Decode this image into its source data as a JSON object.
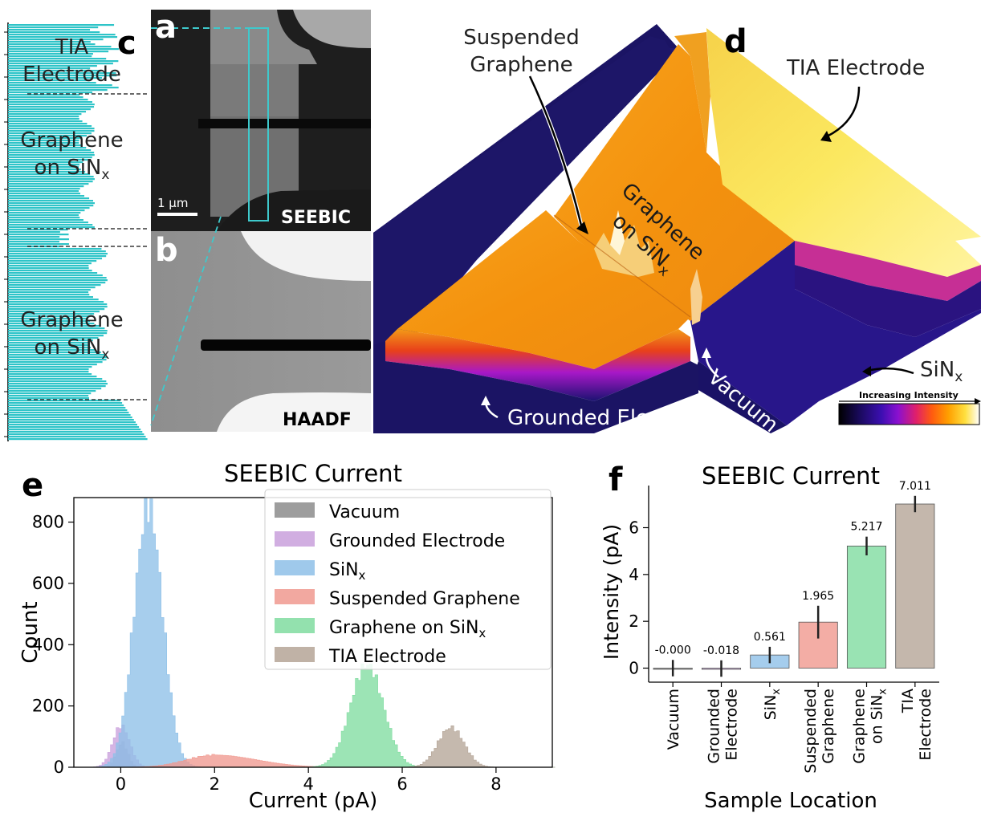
{
  "panels": {
    "a": "a",
    "b": "b",
    "c": "c",
    "d": "d",
    "e": "e",
    "f": "f"
  },
  "panel_a": {
    "mode": "SEEBIC",
    "scale_bar": "1 µm"
  },
  "panel_b": {
    "mode": "HAADF"
  },
  "panel_c": {
    "labels": [
      {
        "line1": "TIA",
        "line2": "Electrode"
      },
      {
        "line1": "Graphene",
        "line2": "on SiN",
        "sub": "x"
      },
      {
        "line1": "Graphene",
        "line2": "on SiN",
        "sub": "x"
      }
    ]
  },
  "panel_d": {
    "annotations": {
      "suspended_1": "Suspended",
      "suspended_2": "Graphene",
      "tia": "TIA Electrode",
      "graphene_1": "Graphene",
      "graphene_2": "on SiN",
      "graphene_sub": "x",
      "sinx": "SiN",
      "sinx_sub": "x",
      "vacuum": "Vacuum",
      "grounded": "Grounded Electrode"
    },
    "colorbar_label": "Increasing Intensity",
    "colormap": [
      "#000000",
      "#1a0a5e",
      "#3b0fb0",
      "#8a10d0",
      "#e0206a",
      "#ff5a10",
      "#ffa000",
      "#ffe040",
      "#ffffff"
    ]
  },
  "chart_data": [
    {
      "type": "histogram",
      "title": "SEEBIC Current",
      "xlabel": "Current (pA)",
      "ylabel": "Count",
      "xlim": [
        -1,
        9.2
      ],
      "ylim": [
        0,
        880
      ],
      "xticks": [
        0,
        2,
        4,
        6,
        8
      ],
      "yticks": [
        0,
        200,
        400,
        600,
        800
      ],
      "series": [
        {
          "name": "Vacuum",
          "color": "#8c8c8c",
          "mean": 0.0,
          "sd": 0.12,
          "peak": 80
        },
        {
          "name": "Grounded Electrode",
          "color": "#c9a0dc",
          "mean": -0.02,
          "sd": 0.18,
          "peak": 135
        },
        {
          "name": "SiN",
          "sub": "x",
          "color": "#8ec0e8",
          "mean": 0.56,
          "sd": 0.3,
          "peak": 850
        },
        {
          "name": "Suspended Graphene",
          "color": "#f0998f",
          "mean": 1.97,
          "sd": 0.6,
          "peak": 40
        },
        {
          "name": "Graphene on SiN",
          "sub": "x",
          "color": "#80dca0",
          "mean": 5.22,
          "sd": 0.35,
          "peak": 335
        },
        {
          "name": "TIA Electrode",
          "color": "#b5a597",
          "mean": 7.01,
          "sd": 0.28,
          "peak": 130
        }
      ]
    },
    {
      "type": "bar",
      "title": "SEEBIC Current",
      "xlabel": "Sample Location",
      "ylabel": "Intensity (pA)",
      "ylim": [
        -0.6,
        7.8
      ],
      "yticks": [
        0,
        2,
        4,
        6
      ],
      "categories": [
        {
          "l1": "Vacuum",
          "l2": ""
        },
        {
          "l1": "Grounded",
          "l2": "Electrode"
        },
        {
          "l1": "SiN",
          "l2": "",
          "sub": "x"
        },
        {
          "l1": "Suspended",
          "l2": "Graphene"
        },
        {
          "l1": "Graphene",
          "l2": "on SiN",
          "sub": "x"
        },
        {
          "l1": "TIA",
          "l2": "Electrode"
        }
      ],
      "values": [
        -0.0,
        -0.018,
        0.561,
        1.965,
        5.217,
        7.011
      ],
      "value_labels": [
        "-0.000",
        "-0.018",
        "0.561",
        "1.965",
        "5.217",
        "7.011"
      ],
      "errors": [
        0.35,
        0.35,
        0.35,
        0.7,
        0.4,
        0.35
      ],
      "colors": [
        "#8c8c8c",
        "#c9a0dc",
        "#8ec0e8",
        "#f0998f",
        "#80dca0",
        "#b5a597"
      ]
    }
  ]
}
